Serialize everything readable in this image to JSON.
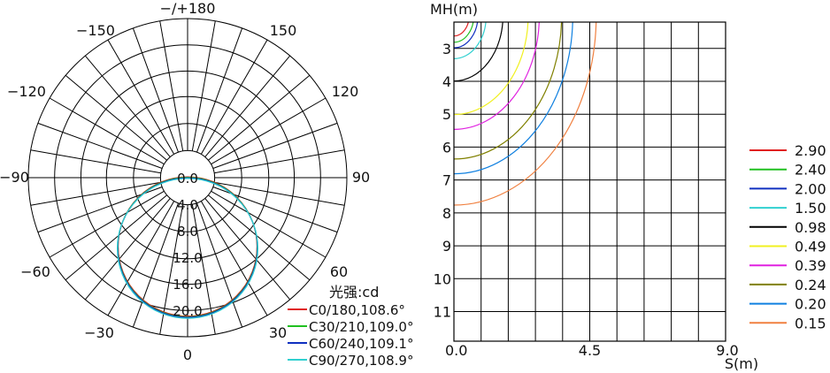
{
  "chart_data": [
    {
      "type": "polar",
      "title": "",
      "unit_label": "光强:cd",
      "angle_labels": {
        "top": "−/+180",
        "l150": "−150",
        "r150": "150",
        "l120": "−120",
        "r120": "120",
        "l90": "−90",
        "r90": "90",
        "l60": "−60",
        "r60": "60",
        "l30": "−30",
        "r30": "30",
        "bottom": "0"
      },
      "radial_labels": [
        "0.0",
        "4.0",
        "8.0",
        "12.0",
        "16.0",
        "20.0"
      ],
      "rmax": 24,
      "series": [
        {
          "name": "C0/180,108.6°",
          "color": "#e02020",
          "diameter": 21.0
        },
        {
          "name": "C30/210,109.0°",
          "color": "#20c020",
          "diameter": 21.05
        },
        {
          "name": "C60/240,109.1°",
          "color": "#1030c0",
          "diameter": 21.05
        },
        {
          "name": "C90/270,108.9°",
          "color": "#30d0d0",
          "diameter": 21.1
        }
      ]
    },
    {
      "type": "isolux",
      "xlabel": "S(m)",
      "ylabel": "MH(m)",
      "x_ticks": [
        "0.0",
        "4.5",
        "9.0"
      ],
      "y_ticks": [
        "3",
        "4",
        "5",
        "6",
        "7",
        "8",
        "9",
        "10",
        "11"
      ],
      "xlim": [
        0,
        9
      ],
      "ylim": [
        2.2,
        11.9
      ],
      "contours": [
        {
          "label": "2.90",
          "color": "#e02020",
          "radius": 0.61
        },
        {
          "label": "2.40",
          "color": "#20c020",
          "radius": 0.8
        },
        {
          "label": "2.00",
          "color": "#1030c0",
          "radius": 0.97
        },
        {
          "label": "1.50",
          "color": "#30d0d0",
          "radius": 1.3
        },
        {
          "label": "0.98",
          "color": "#000000",
          "radius": 1.98
        },
        {
          "label": "0.49",
          "color": "#f0f020",
          "radius": 3.0
        },
        {
          "label": "0.39",
          "color": "#e020e0",
          "radius": 3.45
        },
        {
          "label": "0.24",
          "color": "#808000",
          "radius": 4.35
        },
        {
          "label": "0.20",
          "color": "#1080e0",
          "radius": 4.8
        },
        {
          "label": "0.15",
          "color": "#f08040",
          "radius": 5.75
        }
      ]
    }
  ]
}
